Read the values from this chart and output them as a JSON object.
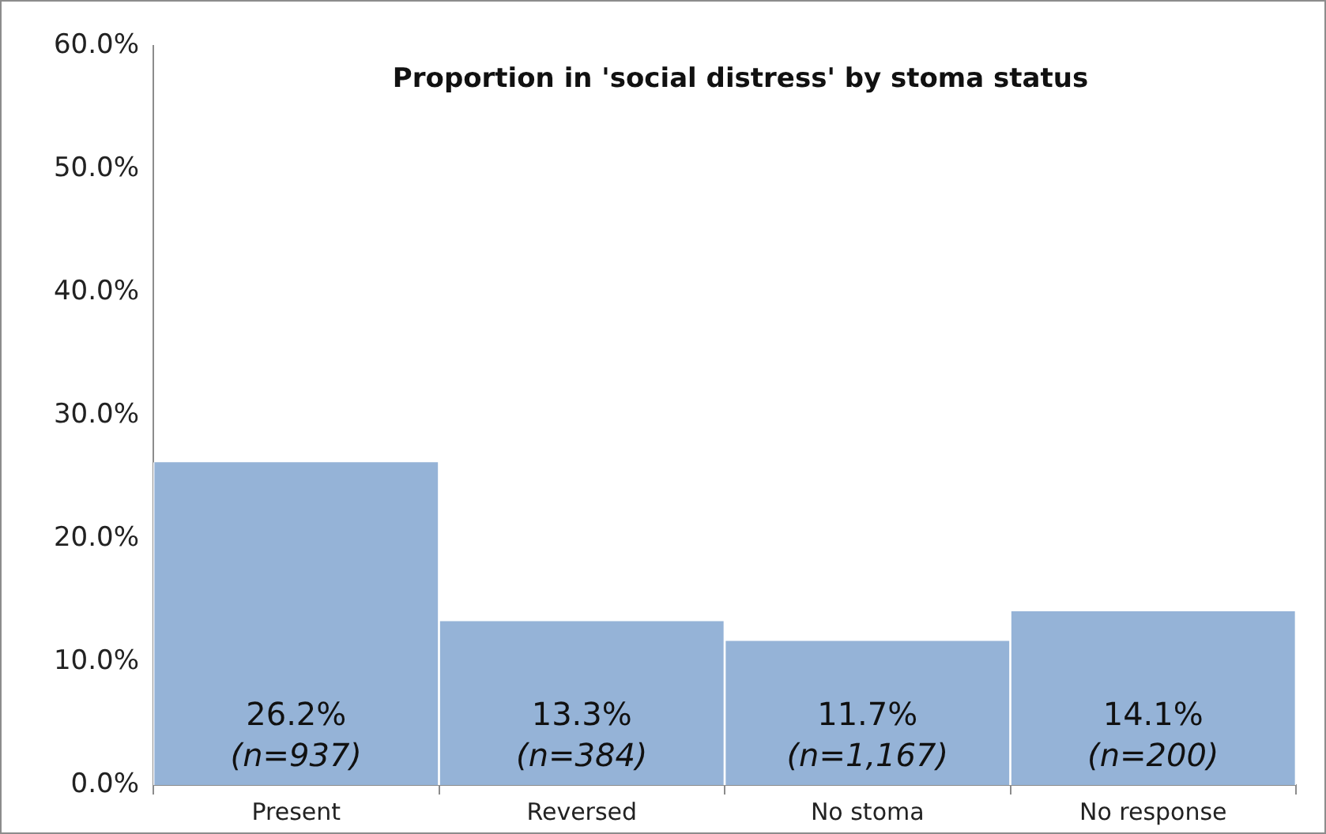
{
  "chart_data": {
    "type": "bar",
    "title": "Proportion in 'social distress' by stoma status",
    "categories": [
      "Present",
      "Reversed",
      "No stoma",
      "No response"
    ],
    "values": [
      26.2,
      13.3,
      11.7,
      14.1
    ],
    "value_labels": [
      "26.2%\n(n=937)",
      "13.3%\n(n=384)",
      "11.7%\n(n=1,167)",
      "14.1%\n(n=200)"
    ],
    "color": "#95b3d7",
    "ylim": [
      0,
      60
    ],
    "yticks": [
      {
        "value": 0,
        "label": "0.0%"
      },
      {
        "value": 10,
        "label": "10.0%"
      },
      {
        "value": 20,
        "label": "20.0%"
      },
      {
        "value": 30,
        "label": "30.0%"
      },
      {
        "value": 40,
        "label": "40.0%"
      },
      {
        "value": 50,
        "label": "50.0%"
      },
      {
        "value": 60,
        "label": "60.0%"
      }
    ],
    "grid": false,
    "legend": false
  }
}
